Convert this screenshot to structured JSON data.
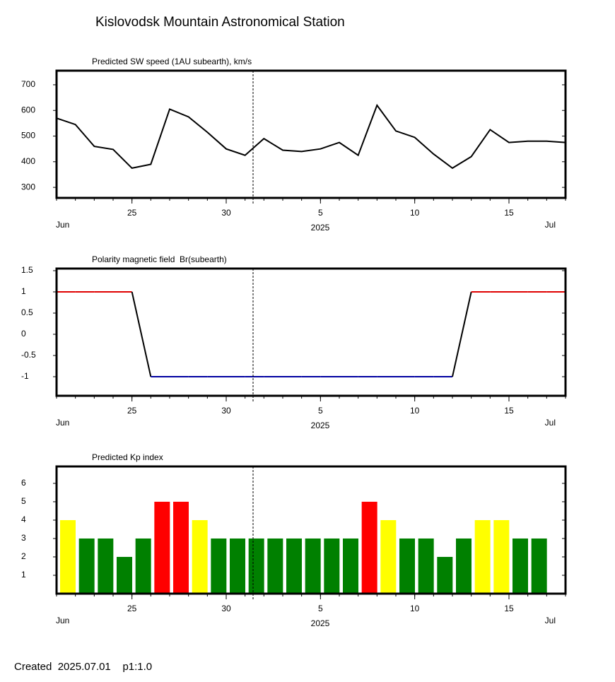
{
  "title": "Kislovodsk Mountain Astronomical Station",
  "footer": "Created  2025.07.01    p1:1.0",
  "chart_data": [
    {
      "type": "line",
      "title": "Predicted SW speed (1AU subearth), km/s",
      "color": "#000000",
      "x": [
        "2025-06-21",
        "2025-06-22",
        "2025-06-23",
        "2025-06-24",
        "2025-06-25",
        "2025-06-26",
        "2025-06-27",
        "2025-06-28",
        "2025-06-29",
        "2025-06-30",
        "2025-07-01",
        "2025-07-02",
        "2025-07-03",
        "2025-07-04",
        "2025-07-05",
        "2025-07-06",
        "2025-07-07",
        "2025-07-08",
        "2025-07-09",
        "2025-07-10",
        "2025-07-11",
        "2025-07-12",
        "2025-07-13",
        "2025-07-14",
        "2025-07-15",
        "2025-07-16",
        "2025-07-17",
        "2025-07-18"
      ],
      "values": [
        570,
        545,
        460,
        448,
        375,
        390,
        605,
        575,
        515,
        450,
        425,
        490,
        445,
        440,
        450,
        475,
        425,
        620,
        520,
        495,
        430,
        375,
        420,
        525,
        475,
        480,
        480,
        475
      ],
      "xlim": [
        "2025-06-21",
        "2025-07-18"
      ],
      "xticks": [
        {
          "value": "2025-06-25",
          "label": "25"
        },
        {
          "value": "2025-06-30",
          "label": "30"
        },
        {
          "value": "2025-07-05",
          "label": "5"
        },
        {
          "value": "2025-07-10",
          "label": "10"
        },
        {
          "value": "2025-07-15",
          "label": "15"
        }
      ],
      "x_month_labels": [
        "Jun",
        "Jul"
      ],
      "x_year_label": "2025",
      "ylim": [
        259,
        755
      ],
      "yticks": [
        300,
        400,
        500,
        600,
        700
      ]
    },
    {
      "type": "polarity",
      "title": "Polarity magnetic field  Br(subearth)",
      "colors": {
        "positive": "#e00000",
        "negative": "#0000a0",
        "transition": "#000000"
      },
      "x": [
        "2025-06-21",
        "2025-06-22",
        "2025-06-23",
        "2025-06-24",
        "2025-06-25",
        "2025-06-26",
        "2025-06-27",
        "2025-06-28",
        "2025-06-29",
        "2025-06-30",
        "2025-07-01",
        "2025-07-02",
        "2025-07-03",
        "2025-07-04",
        "2025-07-05",
        "2025-07-06",
        "2025-07-07",
        "2025-07-08",
        "2025-07-09",
        "2025-07-10",
        "2025-07-11",
        "2025-07-12",
        "2025-07-13",
        "2025-07-14",
        "2025-07-15",
        "2025-07-16",
        "2025-07-17",
        "2025-07-18"
      ],
      "values": [
        1,
        1,
        1,
        1,
        1,
        -1,
        -1,
        -1,
        -1,
        -1,
        -1,
        -1,
        -1,
        -1,
        -1,
        -1,
        -1,
        -1,
        -1,
        -1,
        -1,
        -1,
        1,
        1,
        1,
        1,
        1,
        1
      ],
      "xlim": [
        "2025-06-21",
        "2025-07-18"
      ],
      "xticks": [
        {
          "value": "2025-06-25",
          "label": "25"
        },
        {
          "value": "2025-06-30",
          "label": "30"
        },
        {
          "value": "2025-07-05",
          "label": "5"
        },
        {
          "value": "2025-07-10",
          "label": "10"
        },
        {
          "value": "2025-07-15",
          "label": "15"
        }
      ],
      "x_month_labels": [
        "Jun",
        "Jul"
      ],
      "x_year_label": "2025",
      "ylim": [
        -1.45,
        1.55
      ],
      "yticks": [
        -1,
        -0.5,
        0,
        0.5,
        1,
        1.5
      ]
    },
    {
      "type": "bar",
      "title": "Predicted Kp index",
      "categories": [
        "2025-06-21",
        "2025-06-22",
        "2025-06-23",
        "2025-06-24",
        "2025-06-25",
        "2025-06-26",
        "2025-06-27",
        "2025-06-28",
        "2025-06-29",
        "2025-06-30",
        "2025-07-01",
        "2025-07-02",
        "2025-07-03",
        "2025-07-04",
        "2025-07-05",
        "2025-07-06",
        "2025-07-07",
        "2025-07-08",
        "2025-07-09",
        "2025-07-10",
        "2025-07-11",
        "2025-07-12",
        "2025-07-13",
        "2025-07-14",
        "2025-07-15",
        "2025-07-16"
      ],
      "values": [
        4,
        3,
        3,
        2,
        3,
        5,
        5,
        4,
        3,
        3,
        3,
        3,
        3,
        3,
        3,
        3,
        5,
        4,
        3,
        3,
        2,
        3,
        4,
        4,
        3,
        3
      ],
      "colors": [
        "#ffff00",
        "#008000",
        "#008000",
        "#008000",
        "#008000",
        "#ff0000",
        "#ff0000",
        "#ffff00",
        "#008000",
        "#008000",
        "#008000",
        "#008000",
        "#008000",
        "#008000",
        "#008000",
        "#008000",
        "#ff0000",
        "#ffff00",
        "#008000",
        "#008000",
        "#008000",
        "#008000",
        "#ffff00",
        "#ffff00",
        "#008000",
        "#008000"
      ],
      "xlim": [
        "2025-06-21",
        "2025-07-18"
      ],
      "xticks": [
        {
          "value": "2025-06-25",
          "label": "25"
        },
        {
          "value": "2025-06-30",
          "label": "30"
        },
        {
          "value": "2025-07-05",
          "label": "5"
        },
        {
          "value": "2025-07-10",
          "label": "10"
        },
        {
          "value": "2025-07-15",
          "label": "15"
        }
      ],
      "x_month_labels": [
        "Jun",
        "Jul"
      ],
      "x_year_label": "2025",
      "ylim": [
        0,
        6.92
      ],
      "yticks": [
        1,
        2,
        3,
        4,
        5,
        6
      ]
    }
  ]
}
